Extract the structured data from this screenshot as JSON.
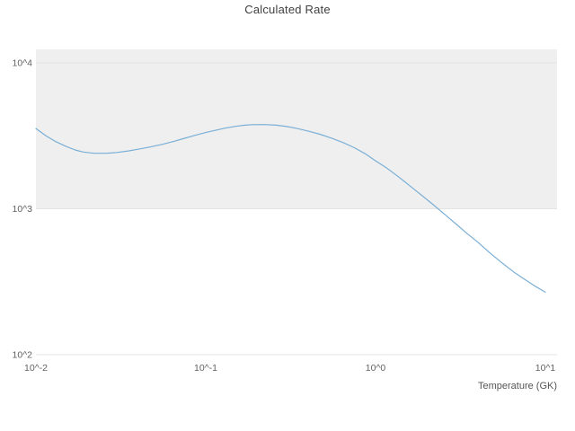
{
  "chart_data": {
    "type": "line",
    "title": "Calculated Rate",
    "xlabel": "Temperature (GK)",
    "ylabel": "",
    "xscale": "log",
    "yscale": "log",
    "xlim": [
      0.01,
      10
    ],
    "ylim": [
      100,
      10000
    ],
    "grid": true,
    "legend": "none",
    "shaded_band": {
      "y_from": 1000,
      "y_to": 10000,
      "note": "decade band 10^3-10^4 shaded light gray, extends to plot top",
      "color": "#efefef"
    },
    "x_ticks": [
      {
        "value": 0.01,
        "label": "10^-2"
      },
      {
        "value": 0.1,
        "label": "10^-1"
      },
      {
        "value": 1,
        "label": "10^0"
      },
      {
        "value": 10,
        "label": "10^1"
      }
    ],
    "y_ticks": [
      {
        "value": 100,
        "label": "10^2"
      },
      {
        "value": 1000,
        "label": "10^3"
      },
      {
        "value": 10000,
        "label": "10^4"
      }
    ],
    "series": [
      {
        "name": "calculated-rate",
        "color": "#7aafd6",
        "x": [
          0.01,
          0.0115,
          0.013,
          0.015,
          0.017,
          0.019,
          0.022,
          0.026,
          0.03,
          0.035,
          0.04,
          0.047,
          0.055,
          0.065,
          0.075,
          0.087,
          0.1,
          0.115,
          0.13,
          0.15,
          0.17,
          0.19,
          0.22,
          0.26,
          0.3,
          0.35,
          0.4,
          0.47,
          0.55,
          0.65,
          0.75,
          0.87,
          1.0,
          1.15,
          1.3,
          1.5,
          1.7,
          2.0,
          2.2,
          2.6,
          3.0,
          3.5,
          4.0,
          4.7,
          5.5,
          6.5,
          7.5,
          8.7,
          10.0
        ],
        "y": [
          3550,
          3150,
          2900,
          2680,
          2530,
          2450,
          2400,
          2400,
          2430,
          2490,
          2560,
          2650,
          2760,
          2900,
          3040,
          3190,
          3330,
          3460,
          3570,
          3670,
          3740,
          3770,
          3780,
          3740,
          3660,
          3540,
          3410,
          3240,
          3050,
          2830,
          2620,
          2380,
          2130,
          1920,
          1730,
          1520,
          1350,
          1160,
          1060,
          900,
          780,
          670,
          590,
          500,
          430,
          370,
          330,
          295,
          268
        ]
      }
    ],
    "style": {
      "band_color": "#efefef",
      "gridline_color": "#e3e3e3",
      "line_color": "#7aafd6",
      "tick_color": "#616161",
      "title_color": "#3f3f3f"
    }
  }
}
